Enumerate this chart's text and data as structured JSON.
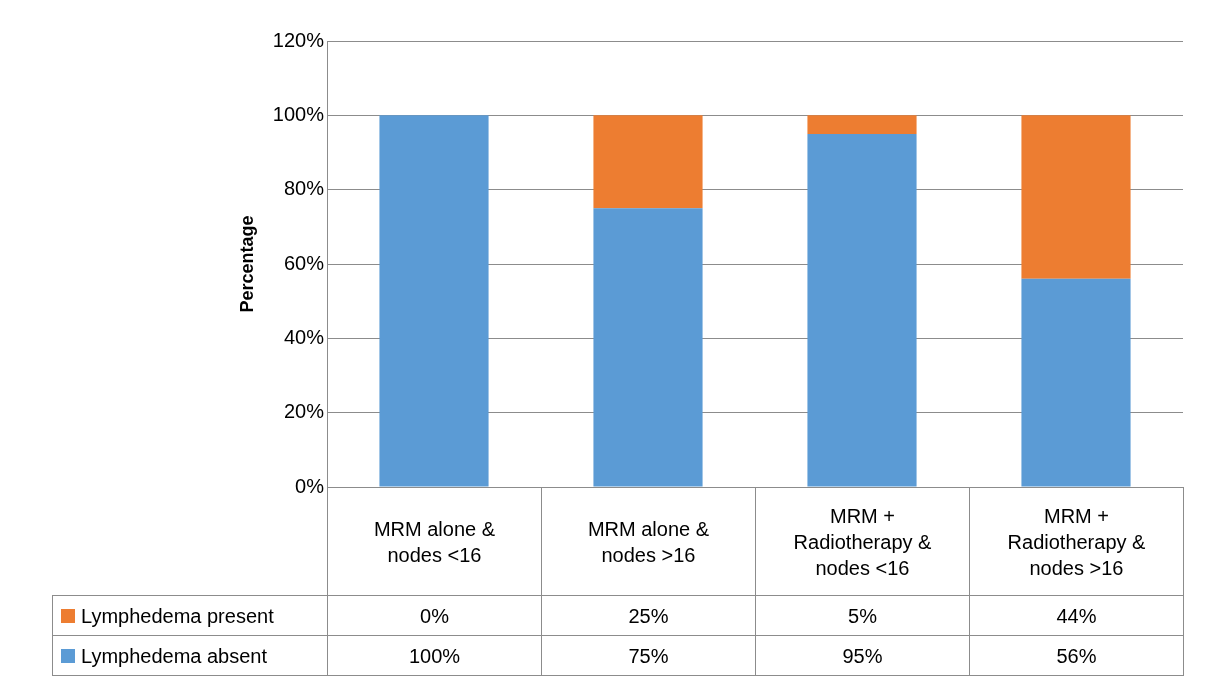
{
  "chart_data": {
    "type": "bar",
    "stacked": true,
    "ylabel": "Percentage",
    "categories": [
      "MRM alone & nodes <16",
      "MRM alone & nodes >16",
      "MRM + Radiotherapy & nodes <16",
      "MRM + Radiotherapy & nodes >16"
    ],
    "series": [
      {
        "name": "Lymphedema absent",
        "color": "#5b9bd5",
        "values": [
          100,
          75,
          95,
          56
        ],
        "value_labels": [
          "100%",
          "75%",
          "95%",
          "56%"
        ]
      },
      {
        "name": "Lymphedema present",
        "color": "#ed7d31",
        "values": [
          0,
          25,
          5,
          44
        ],
        "value_labels": [
          "0%",
          "25%",
          "5%",
          "44%"
        ]
      }
    ],
    "ylim": [
      0,
      120
    ],
    "yticks": [
      {
        "value": 0,
        "label": "0%"
      },
      {
        "value": 20,
        "label": "20%"
      },
      {
        "value": 40,
        "label": "40%"
      },
      {
        "value": 60,
        "label": "60%"
      },
      {
        "value": 80,
        "label": "80%"
      },
      {
        "value": 100,
        "label": "100%"
      },
      {
        "value": 120,
        "label": "120%"
      }
    ],
    "grid": "y",
    "legend": "bottom"
  }
}
